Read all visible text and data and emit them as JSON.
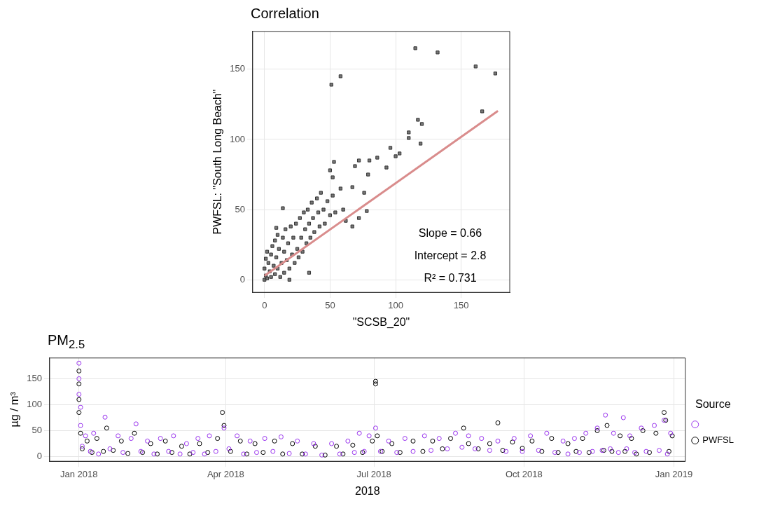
{
  "chart_data": [
    {
      "type": "scatter",
      "title": "Correlation",
      "xlabel": "\"SCSB_20\"",
      "ylabel": "PWFSL: \"South Long Beach\"",
      "xlim": [
        -9,
        187
      ],
      "ylim": [
        -9,
        177
      ],
      "xticks": [
        0,
        50,
        100,
        150
      ],
      "yticks": [
        0,
        50,
        100,
        150
      ],
      "grid": true,
      "legend": false,
      "marker": "square",
      "annotations": [
        "Slope = 0.66",
        "Intercept = 2.8",
        "R² = 0.731"
      ],
      "series": [
        {
          "color": "#333333",
          "x": [
            0,
            1,
            2,
            0,
            3,
            1,
            2,
            4,
            5,
            5,
            6,
            7,
            8,
            8,
            9,
            10,
            10,
            11,
            12,
            13,
            14,
            15,
            15,
            16,
            17,
            18,
            19,
            20,
            21,
            22,
            23,
            24,
            25,
            26,
            27,
            28,
            29,
            30,
            31,
            32,
            33,
            34,
            35,
            36,
            37,
            38,
            40,
            41,
            42,
            43,
            45,
            46,
            48,
            50,
            50,
            54,
            52,
            60,
            62,
            58,
            51,
            58,
            115,
            132,
            161,
            176,
            166,
            117,
            120,
            110,
            110,
            119,
            96,
            100,
            103,
            86,
            93,
            80,
            72,
            53,
            69,
            79,
            52,
            76,
            67,
            78,
            72,
            67,
            14,
            9,
            34,
            19
          ],
          "values": [
            0,
            3,
            1,
            8,
            12,
            15,
            20,
            6,
            2,
            18,
            24,
            10,
            4,
            28,
            16,
            8,
            32,
            22,
            2,
            12,
            30,
            20,
            5,
            36,
            14,
            26,
            8,
            38,
            18,
            30,
            12,
            40,
            22,
            16,
            44,
            30,
            20,
            48,
            36,
            26,
            50,
            40,
            30,
            55,
            44,
            34,
            58,
            48,
            38,
            62,
            50,
            40,
            56,
            46,
            78,
            48,
            60,
            50,
            42,
            65,
            139,
            145,
            165,
            162,
            152,
            147,
            120,
            114,
            111,
            105,
            101,
            97,
            94,
            88,
            90,
            87,
            80,
            85,
            85,
            84,
            81,
            75,
            73,
            62,
            66,
            49,
            44,
            38,
            51,
            37,
            5,
            0
          ]
        },
        {
          "type": "line",
          "marker": "none",
          "color": "#d98c8c",
          "x": [
            0,
            178
          ],
          "values": [
            2.8,
            120.3
          ]
        }
      ]
    },
    {
      "type": "scatter",
      "title": "PM$_{2.5}$",
      "xlabel": "2018",
      "ylabel": "µg / m³",
      "legend_title": "Source",
      "legend": "right",
      "grid": true,
      "marker": "circle",
      "xlim": [
        "2017-12-14",
        "2019-01-08"
      ],
      "ylim": [
        -9,
        190
      ],
      "yticks": [
        0,
        50,
        100,
        150
      ],
      "xticks": [
        {
          "value": "2018-01-01",
          "label": "Jan 2018"
        },
        {
          "value": "2018-04-01",
          "label": "Apr 2018"
        },
        {
          "value": "2018-07-01",
          "label": "Jul 2018"
        },
        {
          "value": "2018-10-01",
          "label": "Oct 2018"
        },
        {
          "value": "2019-01-01",
          "label": "Jan 2019"
        }
      ],
      "series": [
        {
          "color": "#9933ee",
          "x": [
            "2018-01-01",
            "2018-01-01",
            "2018-01-01",
            "2018-01-02",
            "2018-01-02",
            "2018-01-03",
            "2018-01-05",
            "2018-01-08",
            "2018-01-10",
            "2018-01-13",
            "2018-01-17",
            "2018-01-20",
            "2018-01-25",
            "2018-01-28",
            "2018-02-02",
            "2018-02-05",
            "2018-02-08",
            "2018-02-12",
            "2018-02-16",
            "2018-02-20",
            "2018-02-25",
            "2018-02-28",
            "2018-03-04",
            "2018-03-08",
            "2018-03-12",
            "2018-03-15",
            "2018-03-19",
            "2018-03-22",
            "2018-03-26",
            "2018-03-31",
            "2018-04-03",
            "2018-04-08",
            "2018-04-12",
            "2018-04-16",
            "2018-04-20",
            "2018-04-25",
            "2018-04-30",
            "2018-05-05",
            "2018-05-10",
            "2018-05-15",
            "2018-05-20",
            "2018-05-25",
            "2018-05-30",
            "2018-06-05",
            "2018-06-10",
            "2018-06-15",
            "2018-06-19",
            "2018-06-22",
            "2018-06-25",
            "2018-06-28",
            "2018-07-02",
            "2018-07-05",
            "2018-07-10",
            "2018-07-15",
            "2018-07-20",
            "2018-07-25",
            "2018-08-01",
            "2018-08-05",
            "2018-08-10",
            "2018-08-15",
            "2018-08-20",
            "2018-08-24",
            "2018-08-28",
            "2018-09-01",
            "2018-09-05",
            "2018-09-10",
            "2018-09-15",
            "2018-09-20",
            "2018-09-25",
            "2018-09-30",
            "2018-10-05",
            "2018-10-10",
            "2018-10-15",
            "2018-10-20",
            "2018-10-25",
            "2018-10-28",
            "2018-11-01",
            "2018-11-04",
            "2018-11-08",
            "2018-11-12",
            "2018-11-15",
            "2018-11-18",
            "2018-11-20",
            "2018-11-23",
            "2018-11-25",
            "2018-11-28",
            "2018-12-01",
            "2018-12-03",
            "2018-12-05",
            "2018-12-08",
            "2018-12-12",
            "2018-12-15",
            "2018-12-20",
            "2018-12-23",
            "2018-12-26",
            "2018-12-28",
            "2018-12-30"
          ],
          "values": [
            180,
            150,
            120,
            95,
            60,
            20,
            40,
            10,
            45,
            5,
            76,
            15,
            40,
            8,
            35,
            63,
            10,
            30,
            5,
            35,
            10,
            40,
            5,
            25,
            8,
            35,
            5,
            40,
            10,
            55,
            15,
            40,
            5,
            30,
            8,
            35,
            10,
            38,
            6,
            30,
            5,
            25,
            3,
            25,
            5,
            30,
            8,
            45,
            10,
            40,
            55,
            10,
            30,
            8,
            35,
            10,
            40,
            12,
            35,
            15,
            45,
            18,
            40,
            15,
            35,
            12,
            30,
            10,
            35,
            10,
            40,
            12,
            45,
            8,
            30,
            5,
            35,
            8,
            45,
            10,
            55,
            12,
            80,
            15,
            45,
            8,
            75,
            15,
            40,
            8,
            55,
            10,
            60,
            12,
            70,
            5,
            45
          ]
        },
        {
          "name": "PWFSL",
          "color": "#000000",
          "x": [
            "2018-01-01",
            "2018-01-01",
            "2018-01-01",
            "2018-01-01",
            "2018-01-02",
            "2018-01-03",
            "2018-01-06",
            "2018-01-09",
            "2018-01-12",
            "2018-01-16",
            "2018-01-18",
            "2018-01-22",
            "2018-01-27",
            "2018-01-31",
            "2018-02-04",
            "2018-02-09",
            "2018-02-14",
            "2018-02-18",
            "2018-02-23",
            "2018-02-27",
            "2018-03-05",
            "2018-03-10",
            "2018-03-16",
            "2018-03-21",
            "2018-03-27",
            "2018-03-30",
            "2018-03-31",
            "2018-04-04",
            "2018-04-10",
            "2018-04-14",
            "2018-04-19",
            "2018-04-24",
            "2018-05-01",
            "2018-05-06",
            "2018-05-12",
            "2018-05-18",
            "2018-05-26",
            "2018-06-01",
            "2018-06-08",
            "2018-06-12",
            "2018-06-18",
            "2018-06-24",
            "2018-06-30",
            "2018-07-02",
            "2018-07-02",
            "2018-07-03",
            "2018-07-06",
            "2018-07-12",
            "2018-07-17",
            "2018-07-25",
            "2018-07-31",
            "2018-08-06",
            "2018-08-12",
            "2018-08-17",
            "2018-08-25",
            "2018-08-28",
            "2018-09-03",
            "2018-09-10",
            "2018-09-15",
            "2018-09-18",
            "2018-09-24",
            "2018-09-30",
            "2018-10-06",
            "2018-10-12",
            "2018-10-18",
            "2018-10-22",
            "2018-10-28",
            "2018-11-02",
            "2018-11-06",
            "2018-11-10",
            "2018-11-15",
            "2018-11-19",
            "2018-11-21",
            "2018-11-24",
            "2018-11-29",
            "2018-12-02",
            "2018-12-06",
            "2018-12-09",
            "2018-12-13",
            "2018-12-17",
            "2018-12-21",
            "2018-12-26",
            "2018-12-27",
            "2018-12-29",
            "2018-12-31"
          ],
          "values": [
            165,
            140,
            110,
            85,
            45,
            15,
            30,
            8,
            35,
            10,
            55,
            12,
            30,
            6,
            45,
            8,
            25,
            5,
            30,
            8,
            20,
            5,
            25,
            8,
            35,
            85,
            60,
            10,
            30,
            5,
            25,
            8,
            30,
            5,
            25,
            5,
            20,
            3,
            20,
            5,
            22,
            8,
            30,
            145,
            140,
            40,
            10,
            25,
            8,
            30,
            10,
            30,
            15,
            35,
            55,
            25,
            15,
            25,
            65,
            12,
            28,
            16,
            30,
            10,
            35,
            8,
            25,
            10,
            35,
            8,
            50,
            12,
            60,
            10,
            40,
            10,
            35,
            5,
            50,
            8,
            45,
            85,
            70,
            10,
            40
          ]
        }
      ]
    }
  ]
}
